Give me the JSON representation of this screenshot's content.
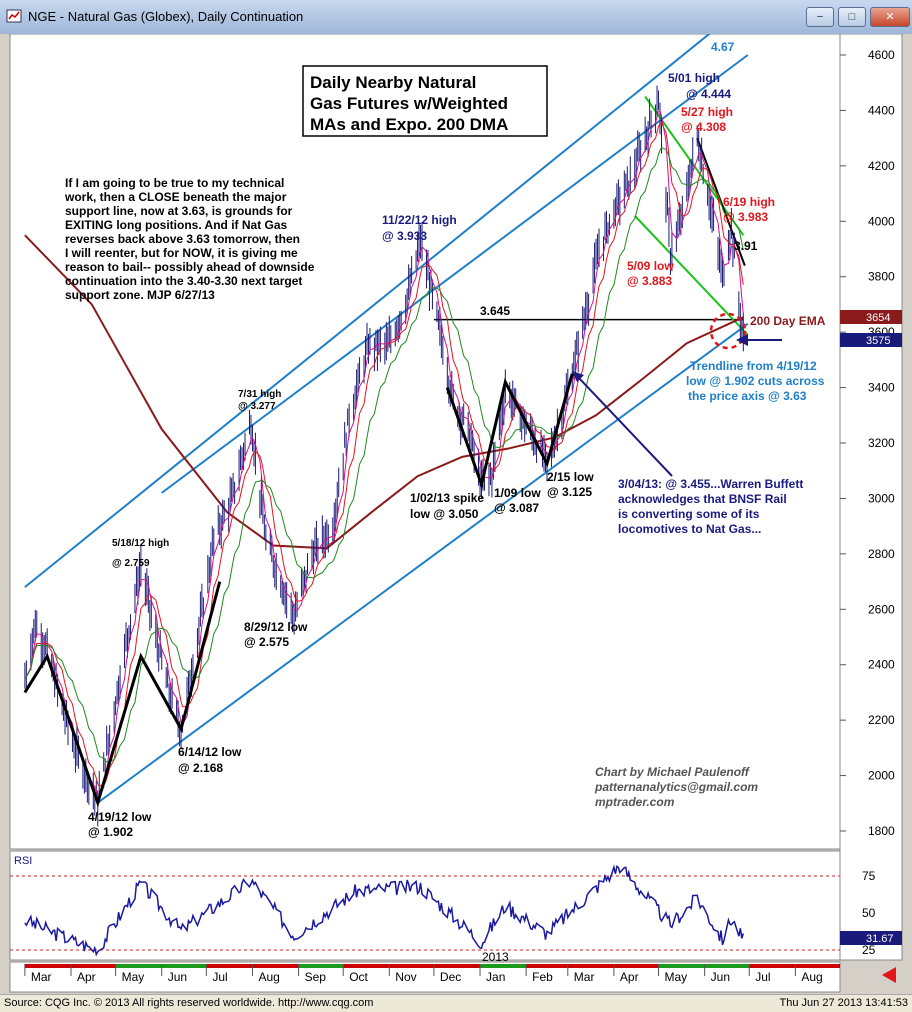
{
  "window": {
    "title": "NGE - Natural Gas (Globex), Daily Continuation",
    "buttons": {
      "minimize": "−",
      "restore": "□",
      "close": "✕"
    }
  },
  "colors": {
    "background": "#ffffff",
    "channel": "#1f7fc8",
    "ema200": "#8b1a1a",
    "ma_fast": "#d60f8c",
    "ma_mid": "#e0161b",
    "ma_slow": "#1e8a1e",
    "price_bars": "#1a1a7a",
    "annotation_red": "#e0161b",
    "annotation_navy": "#1a1a80",
    "annotation_blue": "#1f7fc8",
    "green_line": "#19c419",
    "rsi_line": "#1a1aa0",
    "rsi_guide": "#d02020"
  },
  "chart_data": [
    {
      "type": "line",
      "title": "Daily Nearby Natural Gas Futures w/Weighted MAs and Expo. 200 DMA",
      "xlabel": "",
      "ylabel": "",
      "ylim": [
        1700,
        4700
      ],
      "y_ticks": [
        1800,
        2000,
        2200,
        2400,
        2600,
        2800,
        3000,
        3200,
        3400,
        3600,
        3800,
        4000,
        4200,
        4400,
        4600
      ],
      "x_ticks": [
        "Mar",
        "Apr",
        "May",
        "Jun",
        "Jul",
        "Aug",
        "Sep",
        "Oct",
        "Nov",
        "Dec",
        "Jan",
        "Feb",
        "Mar",
        "Apr",
        "May",
        "Jun",
        "Jul",
        "Aug"
      ],
      "year_label": "2013",
      "price_path": [
        {
          "x": "2012-03-01",
          "y": 2350
        },
        {
          "x": "2012-03-08",
          "y": 2550
        },
        {
          "x": "2012-03-16",
          "y": 2450
        },
        {
          "x": "2012-03-26",
          "y": 2250
        },
        {
          "x": "2012-04-05",
          "y": 2080
        },
        {
          "x": "2012-04-19",
          "y": 1902
        },
        {
          "x": "2012-04-27",
          "y": 2150
        },
        {
          "x": "2012-05-07",
          "y": 2450
        },
        {
          "x": "2012-05-18",
          "y": 2759
        },
        {
          "x": "2012-05-28",
          "y": 2500
        },
        {
          "x": "2012-06-06",
          "y": 2300
        },
        {
          "x": "2012-06-14",
          "y": 2168
        },
        {
          "x": "2012-06-25",
          "y": 2500
        },
        {
          "x": "2012-07-06",
          "y": 2850
        },
        {
          "x": "2012-07-18",
          "y": 3000
        },
        {
          "x": "2012-07-31",
          "y": 3277
        },
        {
          "x": "2012-08-10",
          "y": 2850
        },
        {
          "x": "2012-08-20",
          "y": 2700
        },
        {
          "x": "2012-08-29",
          "y": 2575
        },
        {
          "x": "2012-09-10",
          "y": 2800
        },
        {
          "x": "2012-09-24",
          "y": 2900
        },
        {
          "x": "2012-10-05",
          "y": 3300
        },
        {
          "x": "2012-10-18",
          "y": 3550
        },
        {
          "x": "2012-10-31",
          "y": 3550
        },
        {
          "x": "2012-11-12",
          "y": 3700
        },
        {
          "x": "2012-11-22",
          "y": 3933
        },
        {
          "x": "2012-12-05",
          "y": 3600
        },
        {
          "x": "2012-12-14",
          "y": 3350
        },
        {
          "x": "2012-12-24",
          "y": 3250
        },
        {
          "x": "2013-01-02",
          "y": 3050
        },
        {
          "x": "2013-01-09",
          "y": 3087
        },
        {
          "x": "2013-01-18",
          "y": 3400
        },
        {
          "x": "2013-01-28",
          "y": 3300
        },
        {
          "x": "2013-02-08",
          "y": 3200
        },
        {
          "x": "2013-02-15",
          "y": 3125
        },
        {
          "x": "2013-02-25",
          "y": 3300
        },
        {
          "x": "2013-03-04",
          "y": 3455
        },
        {
          "x": "2013-03-12",
          "y": 3650
        },
        {
          "x": "2013-03-22",
          "y": 3900
        },
        {
          "x": "2013-04-02",
          "y": 4050
        },
        {
          "x": "2013-04-12",
          "y": 4150
        },
        {
          "x": "2013-04-22",
          "y": 4300
        },
        {
          "x": "2013-05-01",
          "y": 4444
        },
        {
          "x": "2013-05-09",
          "y": 3883
        },
        {
          "x": "2013-05-16",
          "y": 4000
        },
        {
          "x": "2013-05-27",
          "y": 4308
        },
        {
          "x": "2013-06-05",
          "y": 4050
        },
        {
          "x": "2013-06-13",
          "y": 3800
        },
        {
          "x": "2013-06-19",
          "y": 3983
        },
        {
          "x": "2013-06-24",
          "y": 3700
        },
        {
          "x": "2013-06-27",
          "y": 3575
        }
      ],
      "series_200_day_ema": [
        {
          "x": "2012-03-01",
          "y": 3950
        },
        {
          "x": "2012-04-15",
          "y": 3700
        },
        {
          "x": "2012-06-01",
          "y": 3250
        },
        {
          "x": "2012-07-15",
          "y": 2950
        },
        {
          "x": "2012-08-15",
          "y": 2830
        },
        {
          "x": "2012-09-20",
          "y": 2820
        },
        {
          "x": "2012-10-20",
          "y": 2950
        },
        {
          "x": "2012-11-20",
          "y": 3080
        },
        {
          "x": "2012-12-20",
          "y": 3150
        },
        {
          "x": "2013-01-20",
          "y": 3180
        },
        {
          "x": "2013-02-20",
          "y": 3220
        },
        {
          "x": "2013-03-20",
          "y": 3300
        },
        {
          "x": "2013-04-20",
          "y": 3430
        },
        {
          "x": "2013-05-20",
          "y": 3560
        },
        {
          "x": "2013-06-27",
          "y": 3654
        }
      ],
      "channel_upper_line": [
        {
          "x": "2012-03-01",
          "y": 2680
        },
        {
          "x": "2013-06-05",
          "y": 4680
        }
      ],
      "channel_mid_line": [
        {
          "x": "2012-06-01",
          "y": 3020
        },
        {
          "x": "2013-06-30",
          "y": 4600
        }
      ],
      "trendline_from_4_19_12": [
        {
          "x": "2012-04-19",
          "y": 1902
        },
        {
          "x": "2013-06-30",
          "y": 3630
        }
      ],
      "horizontal_line": {
        "y": 3645,
        "label": "3.645"
      },
      "current_price": "3575",
      "ema_price": "3654",
      "channel_label": "4.67",
      "ema_label": "200 Day EMA"
    },
    {
      "type": "line",
      "title": "RSI",
      "ylim": [
        20,
        85
      ],
      "y_ticks": [
        25,
        50,
        75
      ],
      "current": "31.67",
      "values": [
        {
          "x": "2012-03-01",
          "y": 45
        },
        {
          "x": "2012-04-05",
          "y": 30
        },
        {
          "x": "2012-04-19",
          "y": 25
        },
        {
          "x": "2012-05-18",
          "y": 70
        },
        {
          "x": "2012-06-14",
          "y": 38
        },
        {
          "x": "2012-07-31",
          "y": 72
        },
        {
          "x": "2012-08-29",
          "y": 35
        },
        {
          "x": "2012-10-10",
          "y": 65
        },
        {
          "x": "2012-11-22",
          "y": 68
        },
        {
          "x": "2013-01-02",
          "y": 30
        },
        {
          "x": "2013-01-18",
          "y": 55
        },
        {
          "x": "2013-02-15",
          "y": 36
        },
        {
          "x": "2013-04-05",
          "y": 82
        },
        {
          "x": "2013-05-09",
          "y": 42
        },
        {
          "x": "2013-05-27",
          "y": 60
        },
        {
          "x": "2013-06-13",
          "y": 32
        },
        {
          "x": "2013-06-19",
          "y": 46
        },
        {
          "x": "2013-06-27",
          "y": 32
        }
      ]
    }
  ],
  "chart_title_box": [
    "Daily Nearby Natural",
    "Gas Futures w/Weighted",
    "MAs and Expo. 200 DMA"
  ],
  "commentary": [
    "If I am going to be true to my technical",
    "work, then a CLOSE beneath the major",
    "support line, now at 3.63, is grounds for",
    "EXITING long positions. And if Nat Gas",
    "reverses back above 3.63 tomorrow, then",
    "I will reenter, but for NOW, it is giving me",
    "reason to bail-- possibly ahead of downside",
    "continuation into the 3.40-3.30 next target",
    "support zone. MJP 6/27/13"
  ],
  "annotations": {
    "a_0419_low": [
      "4/19/12 low",
      "@ 1.902"
    ],
    "a_0518_high": [
      "5/18/12 high",
      "@ 2.759"
    ],
    "a_0614_low": [
      "6/14/12 low",
      "@ 2.168"
    ],
    "a_0731_high": [
      "7/31 high",
      "@ 3.277"
    ],
    "a_0829_low": [
      "8/29/12 low",
      "@ 2.575"
    ],
    "a_1122_high": [
      "11/22/12 high",
      "@ 3.933"
    ],
    "a_0102_spike": [
      "1/02/13 spike",
      "low @ 3.050"
    ],
    "a_0109_low": [
      "1/09 low",
      "@ 3.087"
    ],
    "a_0215_low": [
      "2/15 low",
      "@ 3.125"
    ],
    "a_0501_high": [
      "5/01 high",
      "@ 4.444"
    ],
    "a_0527_high": [
      "5/27 high",
      "@ 4.308"
    ],
    "a_0619_high": [
      "6/19 high",
      "@ 3.983"
    ],
    "a_0509_low": [
      "5/09 low",
      "@ 3.883"
    ],
    "a_391": "3.91",
    "a_buffett": [
      "3/04/13: @ 3.455...Warren Buffett",
      "acknowledges that BNSF Rail",
      "is converting some of its",
      "locomotives to Nat Gas..."
    ],
    "a_trendline": [
      "Trendline from 4/19/12",
      "low @ 1.902 cuts across",
      "the price axis @ 3.63"
    ],
    "a_credit": [
      "Chart by Michael Paulenoff",
      "patternanalytics@gmail.com",
      "mptrader.com"
    ]
  },
  "status": {
    "left": "Source: CQG Inc. © 2013 All rights reserved worldwide. http://www.cqg.com",
    "right": "Thu Jun 27 2013 13:41:53"
  }
}
